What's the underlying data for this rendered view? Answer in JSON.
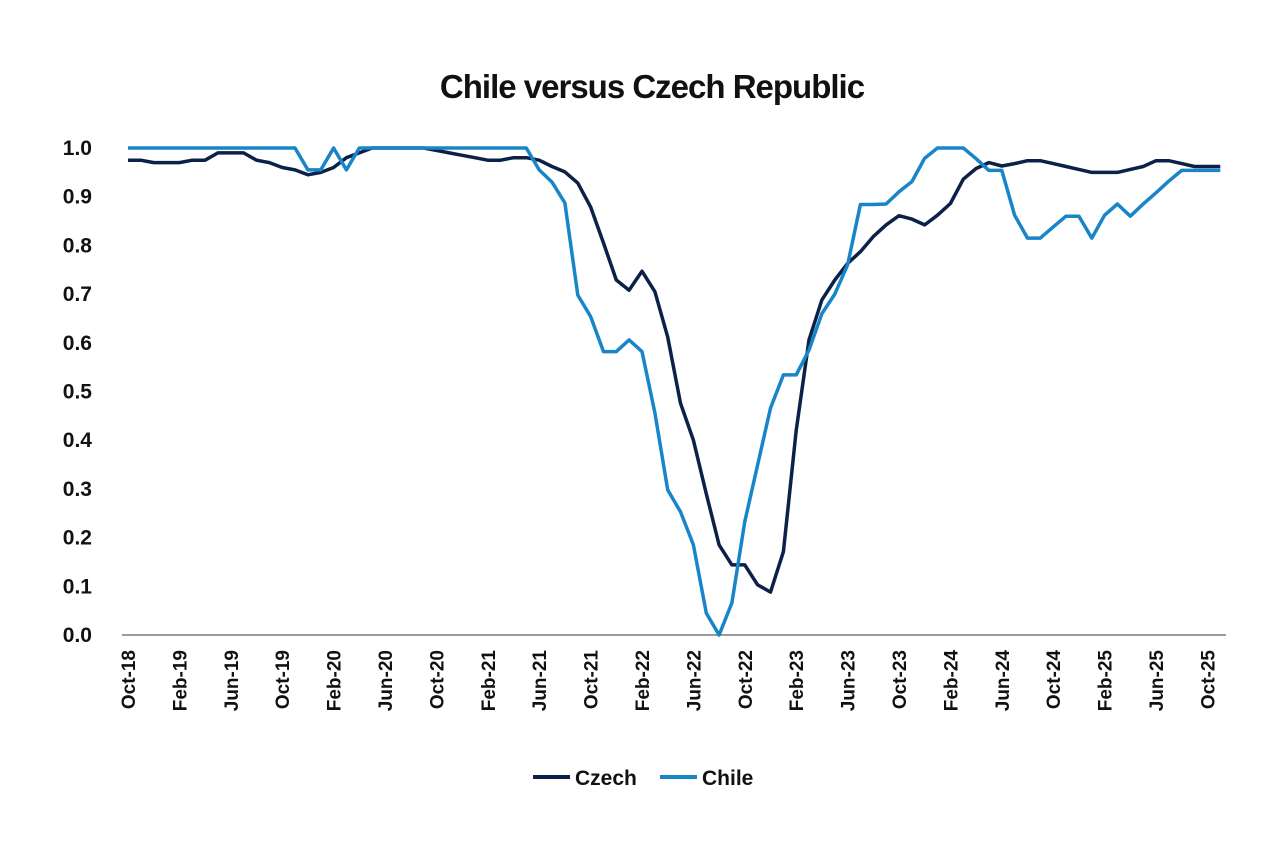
{
  "chart_data": {
    "type": "line",
    "title": "Chile versus Czech Republic",
    "xlabel": "",
    "ylabel": "",
    "ylim": [
      0,
      1.0
    ],
    "y_ticks": [
      "0.0",
      "0.1",
      "0.2",
      "0.3",
      "0.4",
      "0.5",
      "0.6",
      "0.7",
      "0.8",
      "0.9",
      "1.0"
    ],
    "x_tick_labels": [
      "Oct-18",
      "Feb-19",
      "Jun-19",
      "Oct-19",
      "Feb-20",
      "Jun-20",
      "Oct-20",
      "Feb-21",
      "Jun-21",
      "Oct-21",
      "Feb-22",
      "Jun-22",
      "Oct-22",
      "Feb-23",
      "Jun-23",
      "Oct-23",
      "Feb-24",
      "Jun-24",
      "Oct-24",
      "Feb-25",
      "Jun-25",
      "Oct-25"
    ],
    "x_start": "Oct-18",
    "x_end": "Nov-25",
    "x_frequency": "monthly",
    "grid": false,
    "legend_position": "bottom",
    "series": [
      {
        "name": "Czech",
        "color": "#0c2148",
        "values": [
          0.975,
          0.975,
          0.97,
          0.97,
          0.97,
          0.975,
          0.975,
          0.99,
          0.99,
          0.99,
          0.975,
          0.97,
          0.96,
          0.955,
          0.945,
          0.95,
          0.96,
          0.98,
          0.99,
          1.0,
          1.0,
          1.0,
          1.0,
          1.0,
          0.995,
          0.99,
          0.985,
          0.98,
          0.975,
          0.975,
          0.98,
          0.98,
          0.975,
          0.962,
          0.951,
          0.928,
          0.879,
          0.805,
          0.729,
          0.708,
          0.747,
          0.705,
          0.612,
          0.476,
          0.4,
          0.29,
          0.185,
          0.144,
          0.144,
          0.103,
          0.088,
          0.171,
          0.42,
          0.606,
          0.688,
          0.729,
          0.763,
          0.787,
          0.818,
          0.842,
          0.861,
          0.854,
          0.842,
          0.862,
          0.886,
          0.936,
          0.958,
          0.97,
          0.963,
          0.968,
          0.974,
          0.974,
          0.968,
          0.962,
          0.956,
          0.95,
          0.95,
          0.95,
          0.956,
          0.962,
          0.974,
          0.974,
          0.968,
          0.962,
          0.962,
          0.962
        ]
      },
      {
        "name": "Chile",
        "color": "#1985c9",
        "values": [
          1.0,
          1.0,
          1.0,
          1.0,
          1.0,
          1.0,
          1.0,
          1.0,
          1.0,
          1.0,
          1.0,
          1.0,
          1.0,
          1.0,
          0.955,
          0.955,
          1.0,
          0.955,
          1.0,
          1.0,
          1.0,
          1.0,
          1.0,
          1.0,
          1.0,
          1.0,
          1.0,
          1.0,
          1.0,
          1.0,
          1.0,
          1.0,
          0.955,
          0.93,
          0.887,
          0.698,
          0.654,
          0.582,
          0.582,
          0.606,
          0.582,
          0.456,
          0.298,
          0.253,
          0.185,
          0.045,
          0.0,
          0.066,
          0.233,
          0.349,
          0.466,
          0.534,
          0.534,
          0.585,
          0.66,
          0.7,
          0.76,
          0.884,
          0.884,
          0.885,
          0.91,
          0.931,
          0.979,
          1.0,
          1.0,
          1.0,
          0.978,
          0.954,
          0.954,
          0.862,
          0.815,
          0.815,
          0.838,
          0.86,
          0.86,
          0.815,
          0.862,
          0.885,
          0.86,
          0.885,
          0.908,
          0.932,
          0.954,
          0.954,
          0.954,
          0.954
        ]
      }
    ]
  }
}
